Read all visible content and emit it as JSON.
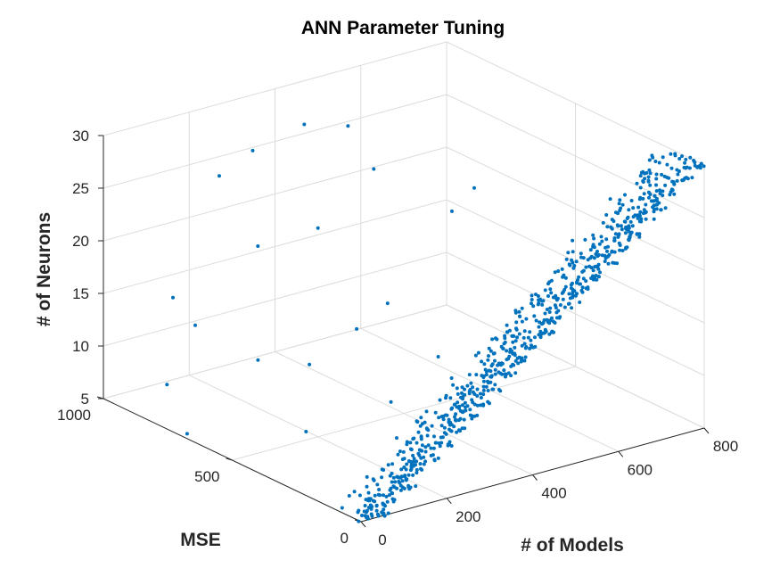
{
  "chart_data": {
    "type": "scatter",
    "projection": "3d",
    "title": "ANN Parameter Tuning",
    "xlabel": "# of Models",
    "ylabel": "MSE",
    "zlabel": "# of Neurons",
    "xlim": [
      0,
      800
    ],
    "ylim": [
      0,
      1000
    ],
    "zlim": [
      5,
      30
    ],
    "xticks": [
      "0",
      "200",
      "400",
      "600",
      "800"
    ],
    "yticks": [
      "0",
      "500",
      "1000"
    ],
    "zticks": [
      "5",
      "10",
      "15",
      "20",
      "25",
      "30"
    ],
    "grid": true,
    "marker_color": "#0072BD",
    "point_generation": {
      "x_range": [
        0,
        800
      ],
      "neurons_start": 5,
      "neurons_end": 30,
      "points_per_neuron_group": 30,
      "mse_typical_max": 120,
      "outliers": [
        {
          "x": 15,
          "y": 700,
          "z": 5
        },
        {
          "x": 40,
          "y": 820,
          "z": 8
        },
        {
          "x": 70,
          "y": 760,
          "z": 14
        },
        {
          "x": 90,
          "y": 880,
          "z": 15
        },
        {
          "x": 120,
          "y": 600,
          "z": 12
        },
        {
          "x": 150,
          "y": 450,
          "z": 13
        },
        {
          "x": 180,
          "y": 700,
          "z": 21
        },
        {
          "x": 210,
          "y": 900,
          "z": 25
        },
        {
          "x": 240,
          "y": 820,
          "z": 28
        },
        {
          "x": 260,
          "y": 600,
          "z": 23
        },
        {
          "x": 300,
          "y": 720,
          "z": 31
        },
        {
          "x": 330,
          "y": 500,
          "z": 29
        },
        {
          "x": 360,
          "y": 650,
          "z": 31
        },
        {
          "x": 100,
          "y": 380,
          "z": 8
        },
        {
          "x": 200,
          "y": 350,
          "z": 17
        },
        {
          "x": 260,
          "y": 330,
          "z": 19
        },
        {
          "x": 220,
          "y": 250,
          "z": 11
        },
        {
          "x": 300,
          "y": 200,
          "z": 15
        },
        {
          "x": 380,
          "y": 280,
          "z": 27
        },
        {
          "x": 420,
          "y": 260,
          "z": 29
        }
      ]
    }
  }
}
